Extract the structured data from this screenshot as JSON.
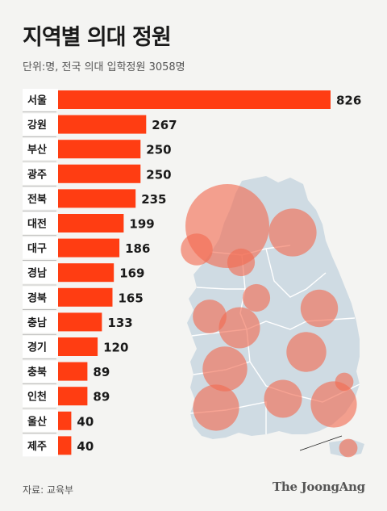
{
  "title": "지역별 의대 정원",
  "subtitle": "단위:명, 전국 의대 입학정원 3058명",
  "source": "자료: 교육부",
  "logo": "The JoongAng",
  "colors": {
    "bar": "#ff3d12",
    "map_fill": "#cfdbe3",
    "bubble": "#f26a50",
    "row_bg": "#ffffff",
    "divider": "#9a9a9a"
  },
  "chart_data": {
    "type": "bar",
    "orientation": "horizontal",
    "categories": [
      "서울",
      "강원",
      "부산",
      "광주",
      "전북",
      "대전",
      "대구",
      "경남",
      "경북",
      "충남",
      "경기",
      "충북",
      "인천",
      "울산",
      "제주"
    ],
    "values": [
      826,
      267,
      250,
      250,
      235,
      199,
      186,
      169,
      165,
      133,
      120,
      89,
      89,
      40,
      40
    ],
    "title": "지역별 의대 정원",
    "xlabel": "",
    "ylabel": ""
  }
}
